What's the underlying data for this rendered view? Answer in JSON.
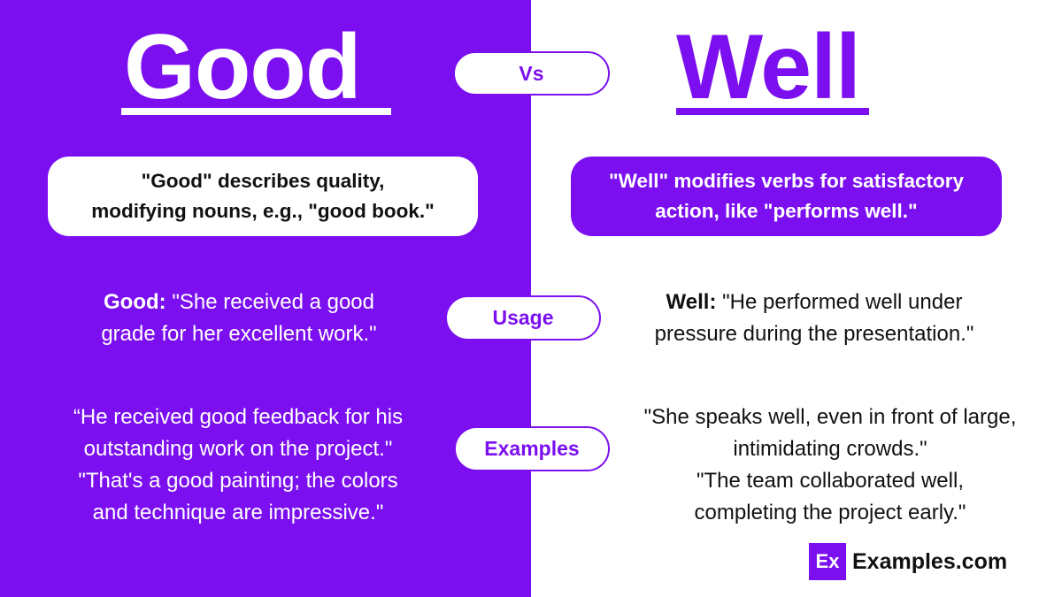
{
  "titles": {
    "left": "Good",
    "right": "Well"
  },
  "pills": {
    "vs": "Vs",
    "usage": "Usage",
    "examples": "Examples"
  },
  "definitions": {
    "good": [
      "\"Good\" describes quality,",
      "modifying nouns, e.g., \"good book.\""
    ],
    "well": [
      "\"Well\" modifies verbs for satisfactory",
      "action, like \"performs well.\""
    ]
  },
  "usage": {
    "good": {
      "label": "Good:",
      "lines": [
        "\"She received a good",
        "grade for her excellent work.\""
      ]
    },
    "well": {
      "label": "Well:",
      "lines": [
        "\"He performed well under",
        "pressure during the presentation.\""
      ]
    }
  },
  "examples": {
    "good": [
      "“He received good feedback for his",
      "outstanding work on the project.\"",
      "\"That's a good painting; the colors",
      "and technique are impressive.\""
    ],
    "well": [
      "\"She speaks well, even in front of large,",
      "intimidating crowds.\"",
      "\"The team collaborated well,",
      "completing the project early.\""
    ]
  },
  "brand": {
    "badge": "Ex",
    "name": "Examples.com"
  },
  "colors": {
    "accent": "#7b0ff0",
    "background": "#ffffff",
    "text": "#111111"
  }
}
